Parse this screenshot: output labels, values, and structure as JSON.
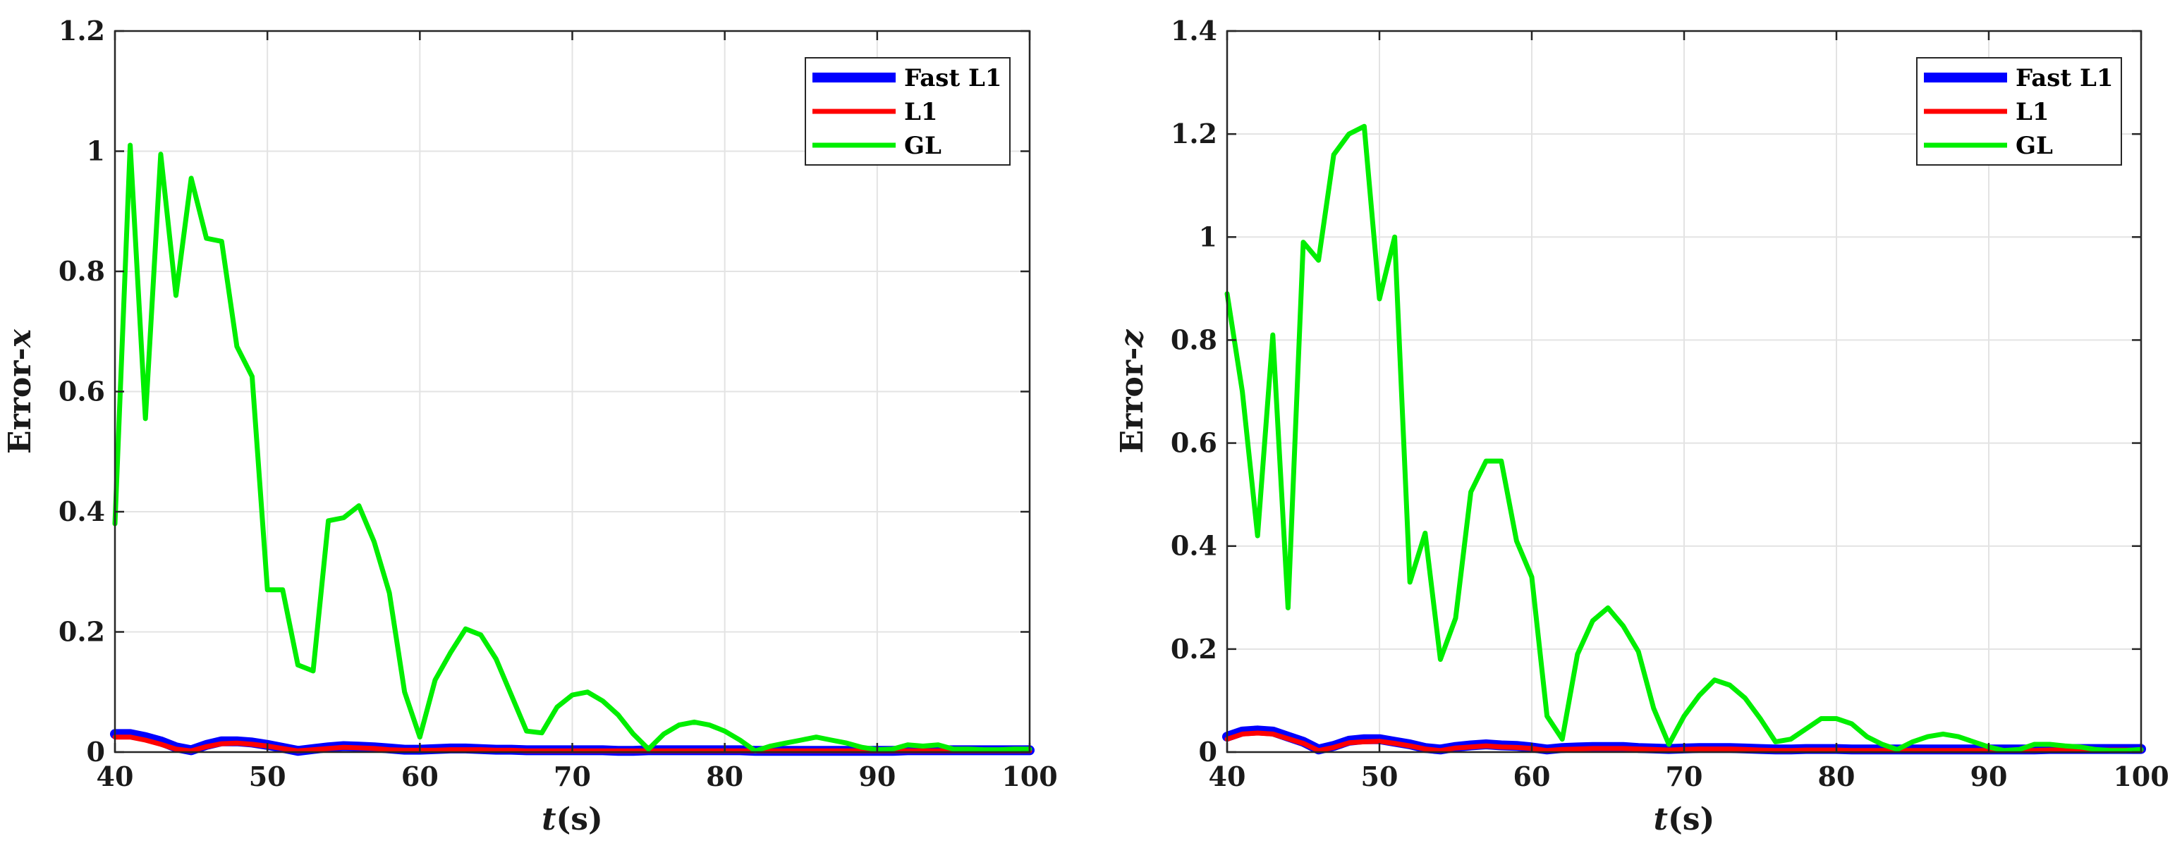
{
  "chart_data": [
    {
      "type": "line",
      "xlabel_var": "t",
      "xlabel_unit": "(s)",
      "ylabel_text": "Error-",
      "ylabel_var": "x",
      "xlim": [
        40,
        100
      ],
      "ylim": [
        0,
        1.2
      ],
      "xticks": [
        40,
        50,
        60,
        70,
        80,
        90,
        100
      ],
      "yticks": [
        0,
        0.2,
        0.4,
        0.6,
        0.8,
        1,
        1.2
      ],
      "ytick_labels": [
        "0",
        "0.2",
        "0.4",
        "0.6",
        "0.8",
        "1",
        "1.2"
      ],
      "grid": true,
      "legend_position": "top-right",
      "x": [
        40,
        41,
        42,
        43,
        44,
        45,
        46,
        47,
        48,
        49,
        50,
        51,
        52,
        53,
        54,
        55,
        56,
        57,
        58,
        59,
        60,
        61,
        62,
        63,
        64,
        65,
        66,
        67,
        68,
        69,
        70,
        71,
        72,
        73,
        74,
        75,
        76,
        77,
        78,
        79,
        80,
        81,
        82,
        83,
        84,
        85,
        86,
        87,
        88,
        89,
        90,
        91,
        92,
        93,
        94,
        95,
        96,
        97,
        98,
        99,
        100
      ],
      "series": [
        {
          "name": "Fast L1",
          "color": "#0000ff",
          "values": [
            0.03,
            0.03,
            0.025,
            0.018,
            0.008,
            0.003,
            0.012,
            0.018,
            0.018,
            0.016,
            0.012,
            0.007,
            0.002,
            0.005,
            0.008,
            0.01,
            0.009,
            0.008,
            0.006,
            0.004,
            0.004,
            0.005,
            0.006,
            0.006,
            0.005,
            0.004,
            0.004,
            0.003,
            0.003,
            0.003,
            0.003,
            0.003,
            0.003,
            0.002,
            0.002,
            0.003,
            0.003,
            0.003,
            0.003,
            0.003,
            0.003,
            0.003,
            0.002,
            0.002,
            0.002,
            0.002,
            0.002,
            0.002,
            0.002,
            0.002,
            0.002,
            0.002,
            0.003,
            0.003,
            0.003,
            0.003,
            0.003,
            0.003,
            0.003,
            0.003,
            0.003
          ]
        },
        {
          "name": "L1",
          "color": "#ff0000",
          "values": [
            0.025,
            0.025,
            0.02,
            0.013,
            0.005,
            0.002,
            0.009,
            0.014,
            0.015,
            0.013,
            0.01,
            0.006,
            0.002,
            0.004,
            0.006,
            0.008,
            0.007,
            0.006,
            0.004,
            0.003,
            0.003,
            0.003,
            0.004,
            0.004,
            0.004,
            0.003,
            0.003,
            0.002,
            0.002,
            0.002,
            0.002,
            0.002,
            0.002,
            0.002,
            0.002,
            0.002,
            0.002,
            0.002,
            0.002,
            0.002,
            0.002,
            0.002,
            0.002,
            0.002,
            0.002,
            0.002,
            0.002,
            0.002,
            0.002,
            0.002,
            0.002,
            0.002,
            0.002,
            0.002,
            0.002,
            0.002,
            0.002,
            0.002,
            0.002,
            0.002,
            0.002
          ]
        },
        {
          "name": "GL",
          "color": "#00ee00",
          "values": [
            0.38,
            1.01,
            0.555,
            0.995,
            0.76,
            0.955,
            0.855,
            0.85,
            0.675,
            0.625,
            0.27,
            0.27,
            0.145,
            0.135,
            0.385,
            0.39,
            0.41,
            0.35,
            0.265,
            0.1,
            0.025,
            0.12,
            0.165,
            0.205,
            0.195,
            0.155,
            0.095,
            0.035,
            0.032,
            0.075,
            0.095,
            0.1,
            0.085,
            0.062,
            0.03,
            0.005,
            0.03,
            0.045,
            0.05,
            0.045,
            0.035,
            0.02,
            0.002,
            0.01,
            0.015,
            0.02,
            0.025,
            0.02,
            0.015,
            0.008,
            0.004,
            0.005,
            0.012,
            0.01,
            0.012,
            0.005,
            0.005,
            0.004,
            0.004,
            0.005,
            0.005
          ]
        }
      ]
    },
    {
      "type": "line",
      "xlabel_var": "t",
      "xlabel_unit": "(s)",
      "ylabel_text": "Error-",
      "ylabel_var": "z",
      "xlim": [
        40,
        100
      ],
      "ylim": [
        0,
        1.4
      ],
      "xticks": [
        40,
        50,
        60,
        70,
        80,
        90,
        100
      ],
      "yticks": [
        0,
        0.2,
        0.4,
        0.6,
        0.8,
        1,
        1.2,
        1.4
      ],
      "ytick_labels": [
        "0",
        "0.2",
        "0.4",
        "0.6",
        "0.8",
        "1",
        "1.2",
        "1.4"
      ],
      "grid": true,
      "legend_position": "top-right",
      "x": [
        40,
        41,
        42,
        43,
        44,
        45,
        46,
        47,
        48,
        49,
        50,
        51,
        52,
        53,
        54,
        55,
        56,
        57,
        58,
        59,
        60,
        61,
        62,
        63,
        64,
        65,
        66,
        67,
        68,
        69,
        70,
        71,
        72,
        73,
        74,
        75,
        76,
        77,
        78,
        79,
        80,
        81,
        82,
        83,
        84,
        85,
        86,
        87,
        88,
        89,
        90,
        91,
        92,
        93,
        94,
        95,
        96,
        97,
        98,
        99,
        100
      ],
      "series": [
        {
          "name": "Fast L1",
          "color": "#0000ff",
          "values": [
            0.03,
            0.04,
            0.042,
            0.04,
            0.03,
            0.02,
            0.005,
            0.012,
            0.022,
            0.025,
            0.025,
            0.02,
            0.015,
            0.008,
            0.005,
            0.01,
            0.013,
            0.015,
            0.013,
            0.012,
            0.009,
            0.005,
            0.008,
            0.009,
            0.01,
            0.01,
            0.01,
            0.008,
            0.007,
            0.006,
            0.007,
            0.008,
            0.008,
            0.008,
            0.007,
            0.006,
            0.005,
            0.005,
            0.006,
            0.006,
            0.006,
            0.005,
            0.005,
            0.005,
            0.005,
            0.005,
            0.005,
            0.005,
            0.005,
            0.005,
            0.005,
            0.005,
            0.005,
            0.005,
            0.006,
            0.006,
            0.006,
            0.006,
            0.006,
            0.006,
            0.006
          ]
        },
        {
          "name": "L1",
          "color": "#ff0000",
          "values": [
            0.025,
            0.035,
            0.037,
            0.035,
            0.026,
            0.017,
            0.003,
            0.009,
            0.018,
            0.02,
            0.021,
            0.017,
            0.012,
            0.006,
            0.003,
            0.008,
            0.01,
            0.012,
            0.01,
            0.009,
            0.007,
            0.003,
            0.005,
            0.006,
            0.007,
            0.007,
            0.007,
            0.006,
            0.005,
            0.004,
            0.005,
            0.006,
            0.006,
            0.006,
            0.005,
            0.004,
            0.003,
            0.003,
            0.004,
            0.004,
            0.004,
            0.003,
            0.003,
            0.003,
            0.003,
            0.003,
            0.003,
            0.003,
            0.003,
            0.003,
            0.003,
            0.003,
            0.003,
            0.003,
            0.004,
            0.004,
            0.004,
            0.004,
            0.004,
            0.004,
            0.004
          ]
        },
        {
          "name": "GL",
          "color": "#00ee00",
          "values": [
            0.89,
            0.7,
            0.42,
            0.81,
            0.28,
            0.99,
            0.955,
            1.16,
            1.2,
            1.215,
            0.88,
            1.0,
            0.33,
            0.425,
            0.18,
            0.26,
            0.505,
            0.565,
            0.565,
            0.41,
            0.34,
            0.07,
            0.025,
            0.19,
            0.255,
            0.28,
            0.245,
            0.195,
            0.085,
            0.015,
            0.07,
            0.11,
            0.14,
            0.13,
            0.105,
            0.065,
            0.02,
            0.025,
            0.045,
            0.065,
            0.065,
            0.055,
            0.03,
            0.015,
            0.005,
            0.02,
            0.03,
            0.035,
            0.03,
            0.02,
            0.01,
            0.003,
            0.005,
            0.015,
            0.015,
            0.012,
            0.01,
            0.005,
            0.003,
            0.003,
            0.005
          ]
        }
      ]
    }
  ]
}
